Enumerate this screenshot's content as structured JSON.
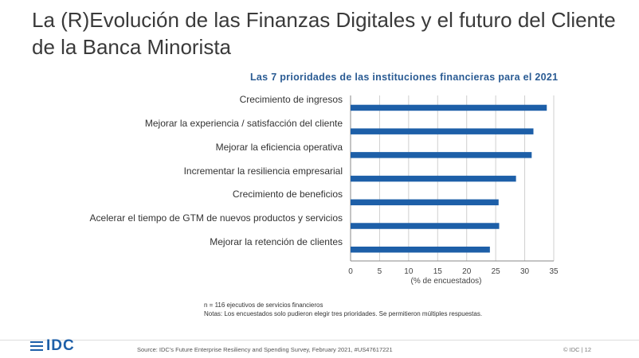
{
  "slide": {
    "title": "La (R)Evolución de las Finanzas Digitales y el futuro del Cliente de la Banca Minorista",
    "note_n": "n = 116 ejecutivos de servicios financieros",
    "note_notas": "Notas: Los encuestados solo pudieron elegir tres prioridades. Se permitieron múltiples respuestas.",
    "source": "Source: IDC's Future Enterprise Resiliency and Spending Survey, February 2021, #US47617221",
    "page": "© IDC |  12",
    "logo_text": "IDC"
  },
  "colors": {
    "bar": "#1d5fa8",
    "title_accent": "#2a5b93"
  },
  "chart_data": {
    "type": "bar",
    "orientation": "horizontal",
    "title": "Las 7 prioridades de las instituciones financieras para el 2021",
    "xlabel": "(% de encuestados)",
    "ylabel": "",
    "categories": [
      "Crecimiento de ingresos",
      "Mejorar la experiencia / satisfacción del cliente",
      "Mejorar la eficiencia operativa",
      "Incrementar la resiliencia empresarial",
      "Crecimiento de beneficios",
      "Acelerar el tiempo de GTM de nuevos productos y servicios",
      "Mejorar la retención de clientes"
    ],
    "values": [
      33.8,
      31.5,
      31.2,
      28.5,
      25.5,
      25.6,
      24.0
    ],
    "xlim": [
      0,
      35
    ],
    "xticks": [
      "0",
      "5",
      "10",
      "15",
      "20",
      "25",
      "30",
      "35"
    ],
    "grid": true
  }
}
